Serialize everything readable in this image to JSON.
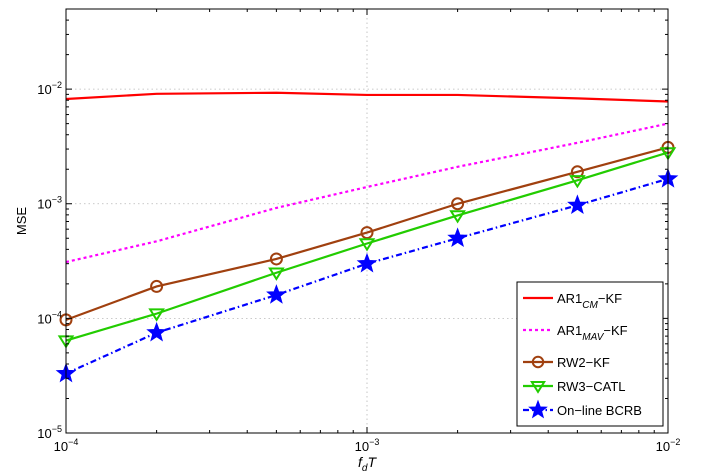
{
  "chart_data": {
    "type": "line",
    "title": "",
    "xlabel": "f_d T",
    "ylabel": "MSE",
    "xscale": "log",
    "yscale": "log",
    "xlim": [
      0.0001,
      0.01
    ],
    "ylim": [
      1e-05,
      0.05
    ],
    "grid": true,
    "legend_position": "bottom-right",
    "x_ticks": [
      {
        "value": 0.0001,
        "base": "10",
        "exp": "−4"
      },
      {
        "value": 0.001,
        "base": "10",
        "exp": "−3"
      },
      {
        "value": 0.01,
        "base": "10",
        "exp": "−2"
      }
    ],
    "y_ticks": [
      {
        "value": 1e-05,
        "base": "10",
        "exp": "−5"
      },
      {
        "value": 0.0001,
        "base": "10",
        "exp": "−4"
      },
      {
        "value": 0.001,
        "base": "10",
        "exp": "−3"
      },
      {
        "value": 0.01,
        "base": "10",
        "exp": "−2"
      }
    ],
    "x": [
      0.0001,
      0.0002,
      0.0005,
      0.001,
      0.002,
      0.005,
      0.01
    ],
    "series": [
      {
        "name": "AR1_CM−KF",
        "label_main": "AR1",
        "label_sub": "CM",
        "label_tail": "−KF",
        "color": "#ff0000",
        "dash": "",
        "marker": "none",
        "values": [
          0.0082,
          0.0091,
          0.0093,
          0.0089,
          0.0089,
          0.0083,
          0.0078
        ]
      },
      {
        "name": "AR1_MAV−KF",
        "label_main": "AR1",
        "label_sub": "MAV",
        "label_tail": "−KF",
        "color": "#ff00ff",
        "dash": "3 3",
        "marker": "none",
        "values": [
          0.00031,
          0.00047,
          0.00092,
          0.0014,
          0.0021,
          0.0034,
          0.005
        ]
      },
      {
        "name": "RW2−KF",
        "label_main": "RW2−KF",
        "label_sub": "",
        "label_tail": "",
        "color": "#a0400f",
        "dash": "",
        "marker": "circle",
        "values": [
          9.7e-05,
          0.00019,
          0.00033,
          0.00056,
          0.001,
          0.0019,
          0.0031
        ]
      },
      {
        "name": "RW3−CATL",
        "label_main": "RW3−CATL",
        "label_sub": "",
        "label_tail": "",
        "color": "#22cc00",
        "dash": "",
        "marker": "triangle-down",
        "values": [
          6.4e-05,
          0.00011,
          0.00025,
          0.00045,
          0.00079,
          0.0016,
          0.0028
        ]
      },
      {
        "name": "On−line BCRB",
        "label_main": "On−line BCRB",
        "label_sub": "",
        "label_tail": "",
        "color": "#0000ff",
        "dash": "6 3 1.5 3",
        "marker": "star",
        "values": [
          3.3e-05,
          7.5e-05,
          0.00016,
          0.0003,
          0.0005,
          0.00097,
          0.00165
        ]
      }
    ]
  }
}
